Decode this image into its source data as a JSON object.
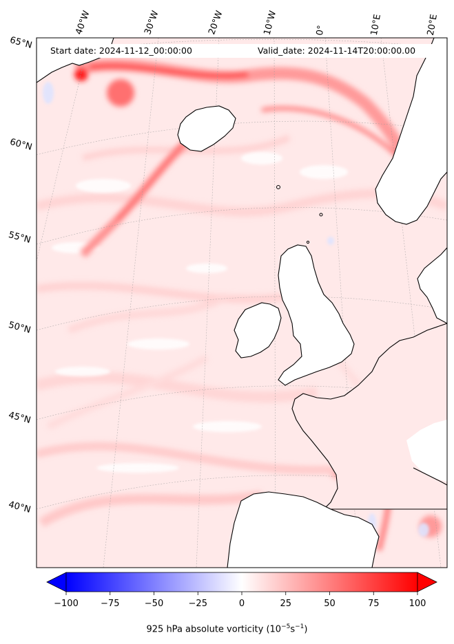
{
  "map": {
    "start_date_label": "Start date: 2024-11-12_00:00:00",
    "valid_date_label": "Valid_date: 2024-11-14T20:00:00.00",
    "longitude_labels": [
      "40°W",
      "30°W",
      "20°W",
      "10°W",
      "0°",
      "10°E",
      "20°E"
    ],
    "latitude_labels": [
      "65°N",
      "60°N",
      "55°N",
      "50°N",
      "45°N",
      "40°N"
    ],
    "colorbar": {
      "ticks": [
        "−100",
        "−75",
        "−50",
        "−25",
        "0",
        "25",
        "50",
        "75",
        "100"
      ],
      "label_main": "925 hPa absolute vorticity (10",
      "label_exp1": "−5",
      "label_mid": "s",
      "label_exp2": "−1",
      "label_end": ")",
      "min": -100,
      "max": 100,
      "negative_color": "#0000ff",
      "positive_color": "#ff0000"
    },
    "colors": {
      "land_outline": "#000000",
      "field_base": "#ffe8e8",
      "jet_streak": "#ff2020"
    }
  }
}
